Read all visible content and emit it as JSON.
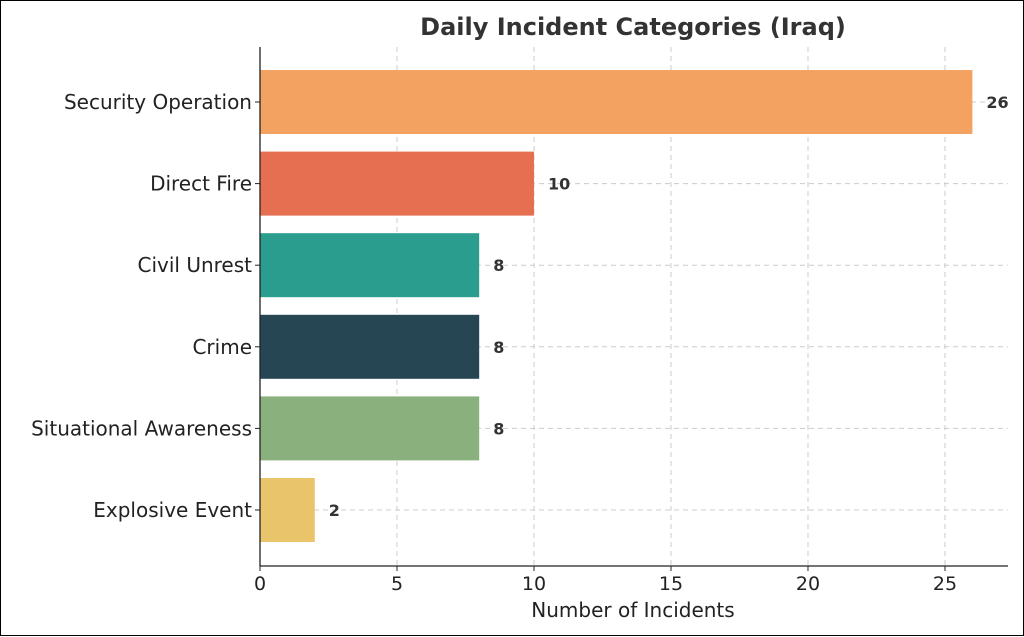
{
  "chart_data": {
    "type": "bar",
    "orientation": "horizontal",
    "title": "Daily Incident Categories (Iraq)",
    "xlabel": "Number of Incidents",
    "ylabel": "",
    "xlim": [
      0,
      27.3
    ],
    "xticks": [
      0,
      5,
      10,
      15,
      20,
      25
    ],
    "grid": true,
    "categories": [
      "Security Operation",
      "Direct Fire",
      "Civil Unrest",
      "Crime",
      "Situational Awareness",
      "Explosive Event"
    ],
    "values": [
      26,
      10,
      8,
      8,
      8,
      2
    ],
    "colors": [
      "#F4A261",
      "#E76F51",
      "#2A9D8F",
      "#264653",
      "#8AB17D",
      "#E9C46A"
    ]
  }
}
